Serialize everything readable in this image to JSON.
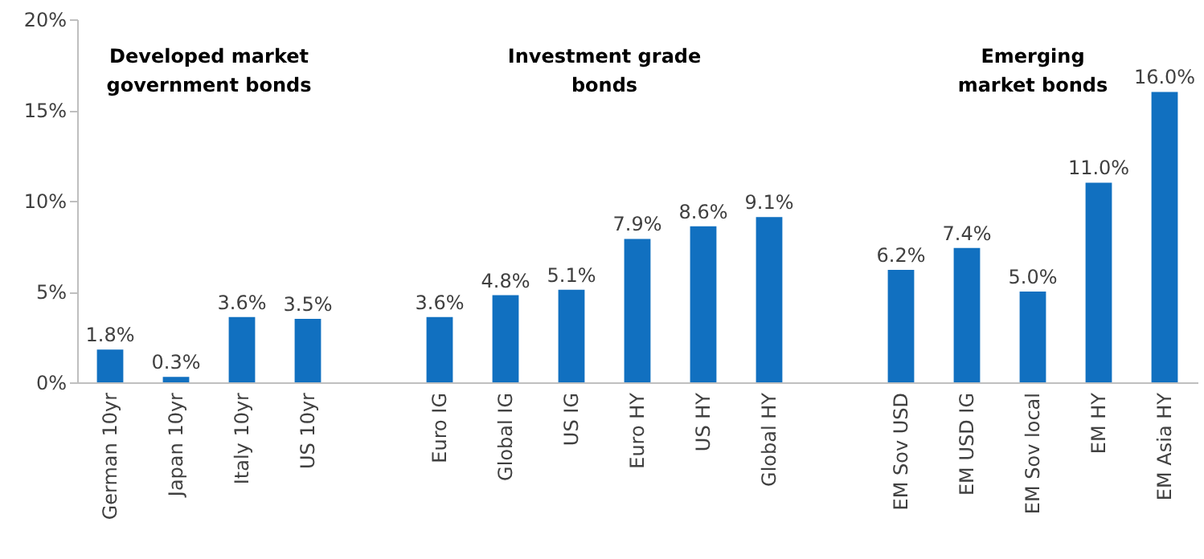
{
  "chart_data": {
    "type": "bar",
    "categories": [
      "German 10yr",
      "Japan 10yr",
      "Italy 10yr",
      "US 10yr",
      null,
      "Euro IG",
      "Global IG",
      "US IG",
      "Euro HY",
      "US HY",
      "Global HY",
      null,
      "EM Sov USD",
      "EM USD IG",
      "EM Sov local",
      "EM HY",
      "EM Asia HY"
    ],
    "values": [
      1.8,
      0.3,
      3.6,
      3.5,
      null,
      3.6,
      4.8,
      5.1,
      7.9,
      8.6,
      9.1,
      null,
      6.2,
      7.4,
      5.0,
      11.0,
      16.0
    ],
    "value_labels": [
      "1.8%",
      "0.3%",
      "3.6%",
      "3.5%",
      null,
      "3.6%",
      "4.8%",
      "5.1%",
      "7.9%",
      "8.6%",
      "9.1%",
      null,
      "6.2%",
      "7.4%",
      "5.0%",
      "11.0%",
      "16.0%"
    ],
    "color": "#1170c0",
    "ylim": [
      0,
      20
    ],
    "yticks": [
      {
        "value": 0,
        "label": "0%"
      },
      {
        "value": 5,
        "label": "5%"
      },
      {
        "value": 10,
        "label": "10%"
      },
      {
        "value": 15,
        "label": "15%"
      },
      {
        "value": 20,
        "label": "20%"
      }
    ],
    "annotations": [
      "Developed market\ngovernment bonds",
      "Investment grade\nbonds",
      "Emerging\nmarket bonds"
    ],
    "grid": false
  }
}
